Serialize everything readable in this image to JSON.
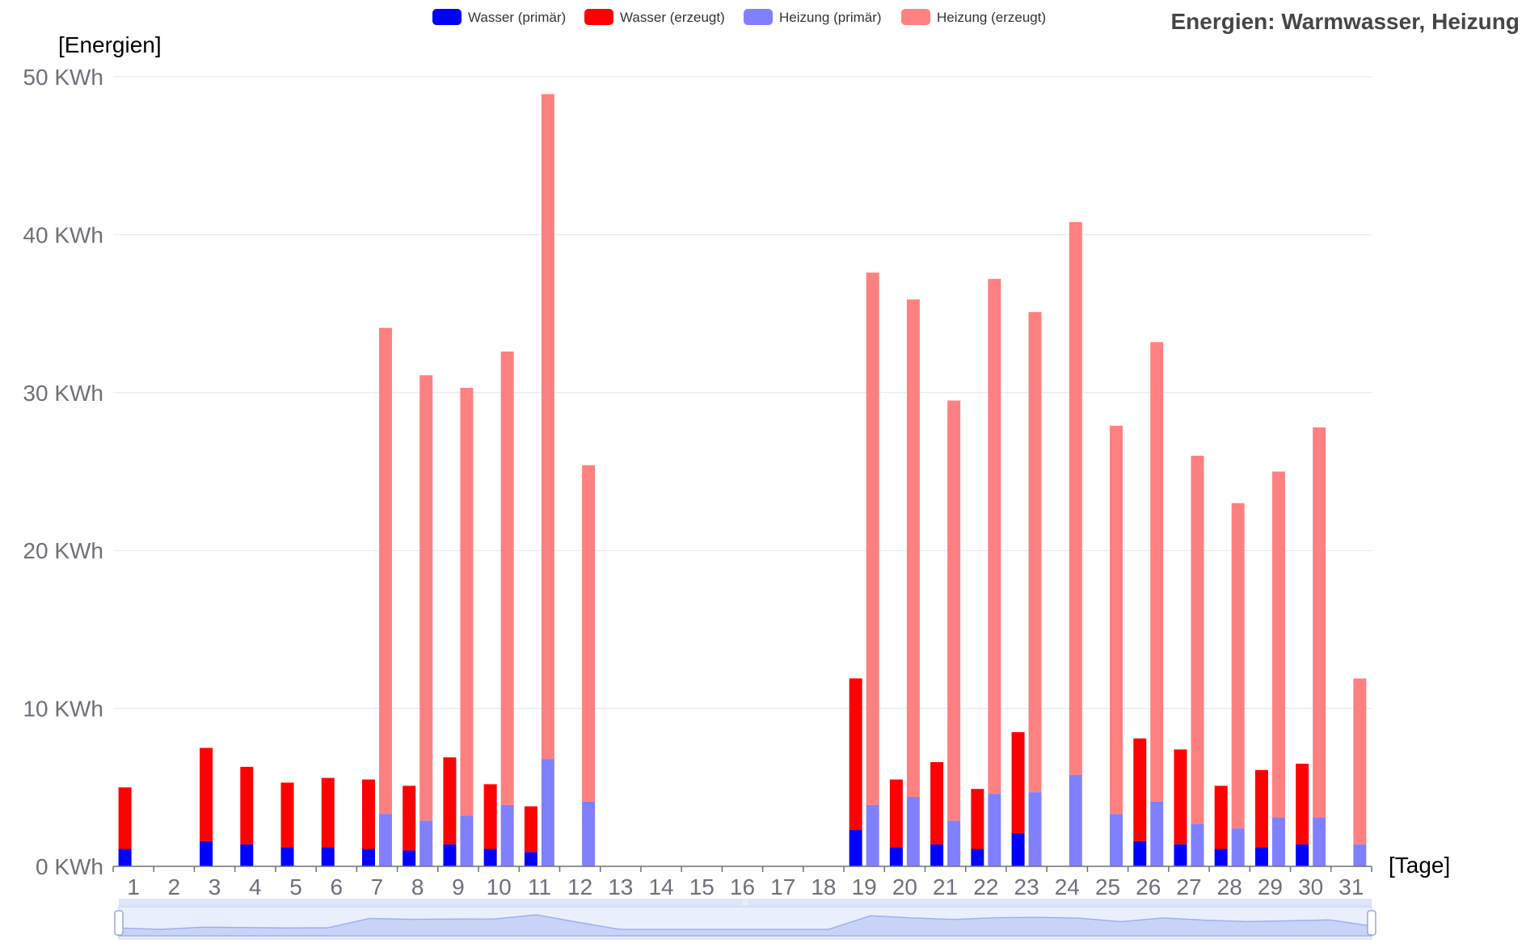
{
  "chart_data": {
    "type": "bar",
    "title": "Energien: Warmwasser, Heizung",
    "ylabel": "[Energien]",
    "xlabel": "[Tage]",
    "yunit": "KWh",
    "ylim": [
      0,
      50
    ],
    "yticks": [
      0,
      10,
      20,
      30,
      40,
      50
    ],
    "grid": true,
    "legend_position": "top-center",
    "categories": [
      "1",
      "2",
      "3",
      "4",
      "5",
      "6",
      "7",
      "8",
      "9",
      "10",
      "11",
      "12",
      "13",
      "14",
      "15",
      "16",
      "17",
      "18",
      "19",
      "20",
      "21",
      "22",
      "23",
      "24",
      "25",
      "26",
      "27",
      "28",
      "29",
      "30",
      "31"
    ],
    "stacks": [
      {
        "name": "Wasser",
        "series": [
          {
            "name": "Wasser (primär)",
            "color": "#0000ff",
            "values": [
              1.1,
              0,
              1.6,
              1.4,
              1.2,
              1.2,
              1.1,
              1.0,
              1.4,
              1.1,
              0.9,
              0,
              0,
              0,
              0,
              0,
              0,
              0,
              2.3,
              1.2,
              1.4,
              1.1,
              2.1,
              0,
              0,
              1.6,
              1.4,
              1.1,
              1.2,
              1.4,
              0
            ]
          },
          {
            "name": "Wasser (erzeugt)",
            "color": "#ff0000",
            "values": [
              3.9,
              0,
              5.9,
              4.9,
              4.1,
              4.4,
              4.4,
              4.1,
              5.5,
              4.1,
              2.9,
              0,
              0,
              0,
              0,
              0,
              0,
              0,
              9.6,
              4.3,
              5.2,
              3.8,
              6.4,
              0,
              0,
              6.5,
              6.0,
              4.0,
              4.9,
              5.1,
              0
            ]
          }
        ]
      },
      {
        "name": "Heizung",
        "series": [
          {
            "name": "Heizung (primär)",
            "color": "#8080ff",
            "values": [
              0,
              0,
              0,
              0,
              0,
              0,
              3.3,
              2.9,
              3.2,
              3.9,
              6.8,
              4.1,
              0,
              0,
              0,
              0,
              0,
              0,
              3.9,
              4.4,
              2.9,
              4.6,
              4.7,
              5.8,
              3.3,
              4.1,
              2.7,
              2.4,
              3.1,
              3.1,
              1.4
            ]
          },
          {
            "name": "Heizung (erzeugt)",
            "color": "#ff8080",
            "values": [
              0,
              0,
              0,
              0,
              0,
              0,
              30.8,
              28.2,
              27.1,
              28.7,
              42.1,
              21.3,
              0,
              0,
              0,
              0,
              0,
              0,
              33.7,
              31.5,
              26.6,
              32.6,
              30.4,
              35.0,
              24.6,
              29.1,
              23.3,
              20.6,
              21.9,
              24.7,
              10.5
            ]
          }
        ]
      }
    ]
  }
}
